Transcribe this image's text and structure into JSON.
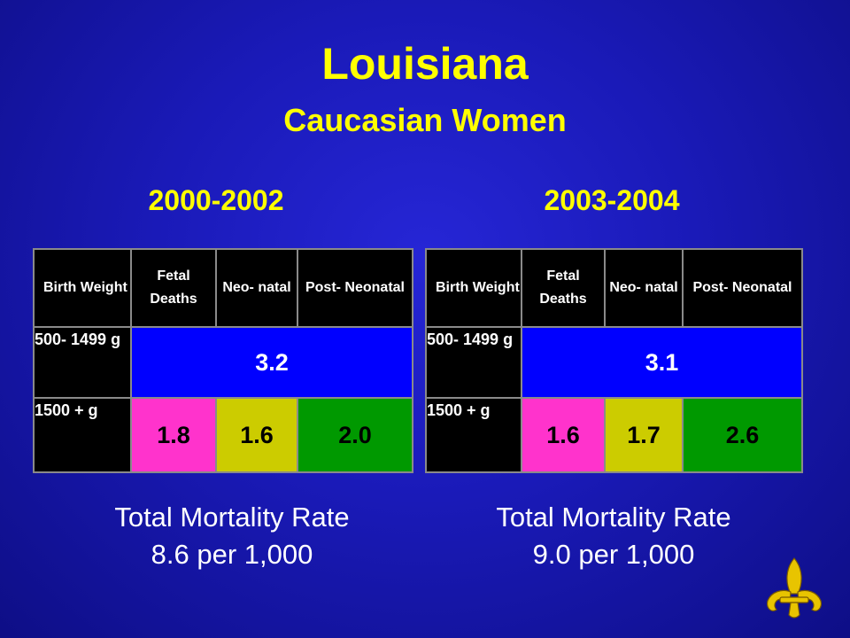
{
  "title": "Louisiana",
  "subtitle": "Caucasian Women",
  "periods": [
    {
      "label": "2000-2002",
      "headers": [
        "Birth Weight",
        "Fetal Deaths",
        "Neo- natal",
        "Post- Neonatal"
      ],
      "row_low": {
        "label": "500- 1499 g",
        "combined": "3.2"
      },
      "row_high": {
        "label": "1500 + g",
        "fetal": "1.8",
        "neonatal": "1.6",
        "postneonatal": "2.0"
      },
      "total_line1": "Total Mortality Rate",
      "total_line2": "8.6 per 1,000"
    },
    {
      "label": "2003-2004",
      "headers": [
        "Birth Weight",
        "Fetal Deaths",
        "Neo- natal",
        "Post- Neonatal"
      ],
      "row_low": {
        "label": "500- 1499 g",
        "combined": "3.1"
      },
      "row_high": {
        "label": "1500 + g",
        "fetal": "1.6",
        "neonatal": "1.7",
        "postneonatal": "2.6"
      },
      "total_line1": "Total Mortality Rate",
      "total_line2": "9.0 per 1,000"
    }
  ],
  "colors": {
    "background": "#1a1ab8",
    "title": "#ffff00",
    "header_cell": "#000000",
    "merged_cell": "#0000ff",
    "fetal_cell": "#ff33cc",
    "neonatal_cell": "#cccc00",
    "postneonatal_cell": "#009900"
  },
  "icons": {
    "corner_emblem": "fleur-de-lis-icon"
  }
}
